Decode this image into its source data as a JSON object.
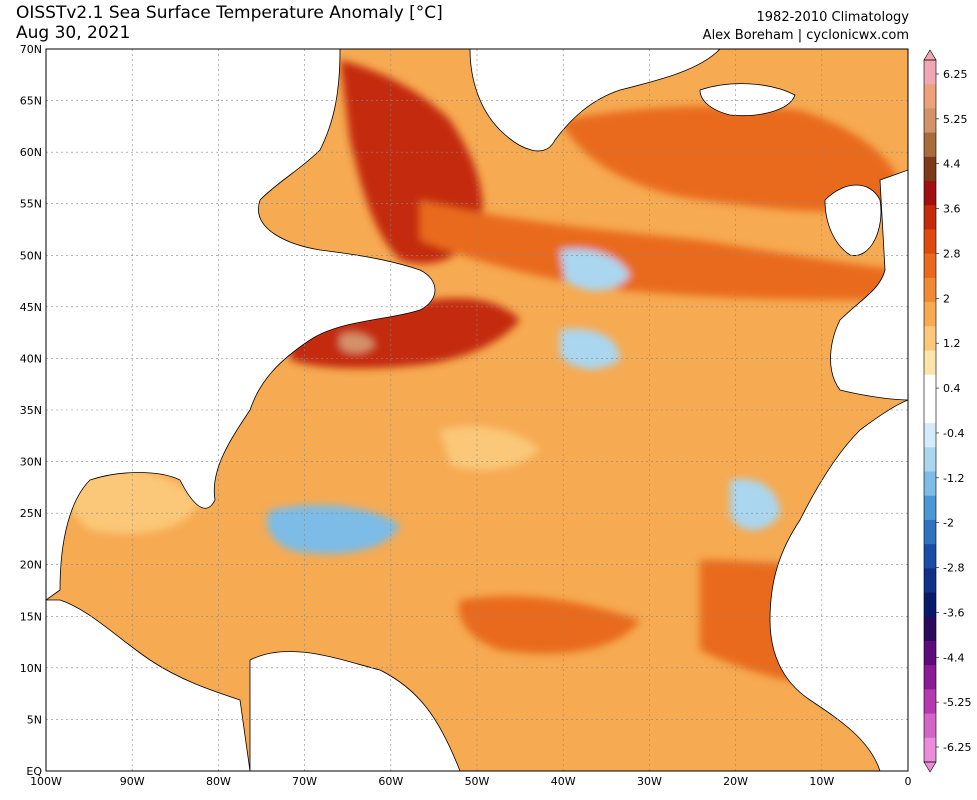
{
  "header": {
    "title": "OISSTv2.1 Sea Surface Temperature Anomaly [°C]",
    "date": "Aug 30, 2021",
    "climatology": "1982-2010 Climatology",
    "credit": "Alex Boreham | cyclonicwx.com"
  },
  "axes": {
    "lat_labels": [
      "70N",
      "65N",
      "60N",
      "55N",
      "50N",
      "45N",
      "40N",
      "35N",
      "30N",
      "25N",
      "20N",
      "15N",
      "10N",
      "5N",
      "EQ"
    ],
    "lon_labels": [
      "100W",
      "90W",
      "80W",
      "70W",
      "60W",
      "50W",
      "40W",
      "30W",
      "20W",
      "10W",
      "0"
    ],
    "lat_range": [
      0,
      70
    ],
    "lon_range": [
      -100,
      0
    ]
  },
  "colorbar": {
    "labels": [
      "6.25",
      "5.25",
      "4.4",
      "3.6",
      "2.8",
      "2",
      "1.2",
      "0.4",
      "-0.4",
      "-1.2",
      "-2",
      "-2.8",
      "-3.6",
      "-4.4",
      "-5.25",
      "-6.25"
    ],
    "colors": [
      "#f2a8b4",
      "#eda07c",
      "#d4926a",
      "#a86b3c",
      "#7e3a18",
      "#a01010",
      "#c42a0c",
      "#dc4a10",
      "#e96a1e",
      "#f18a34",
      "#f6aa52",
      "#fac878",
      "#fde4a8",
      "#ffffff",
      "#ffffff",
      "#d4ecf8",
      "#aad6f0",
      "#7cbce6",
      "#4c98d6",
      "#2e72c0",
      "#1a4ea6",
      "#10308a",
      "#0a1a6a",
      "#2a0a5a",
      "#5e0a7a",
      "#8a1a96",
      "#b43ab0",
      "#d464c6",
      "#ea8cda"
    ]
  },
  "regions": {
    "ocean_base": "#f6aa52",
    "warm_strong": "#c42a0c",
    "warm_moderate": "#e96a1e",
    "warm_light": "#fac878",
    "cool_light": "#aad6f0",
    "cool_moderate": "#7cbce6",
    "extreme_warm": "#d4926a"
  }
}
